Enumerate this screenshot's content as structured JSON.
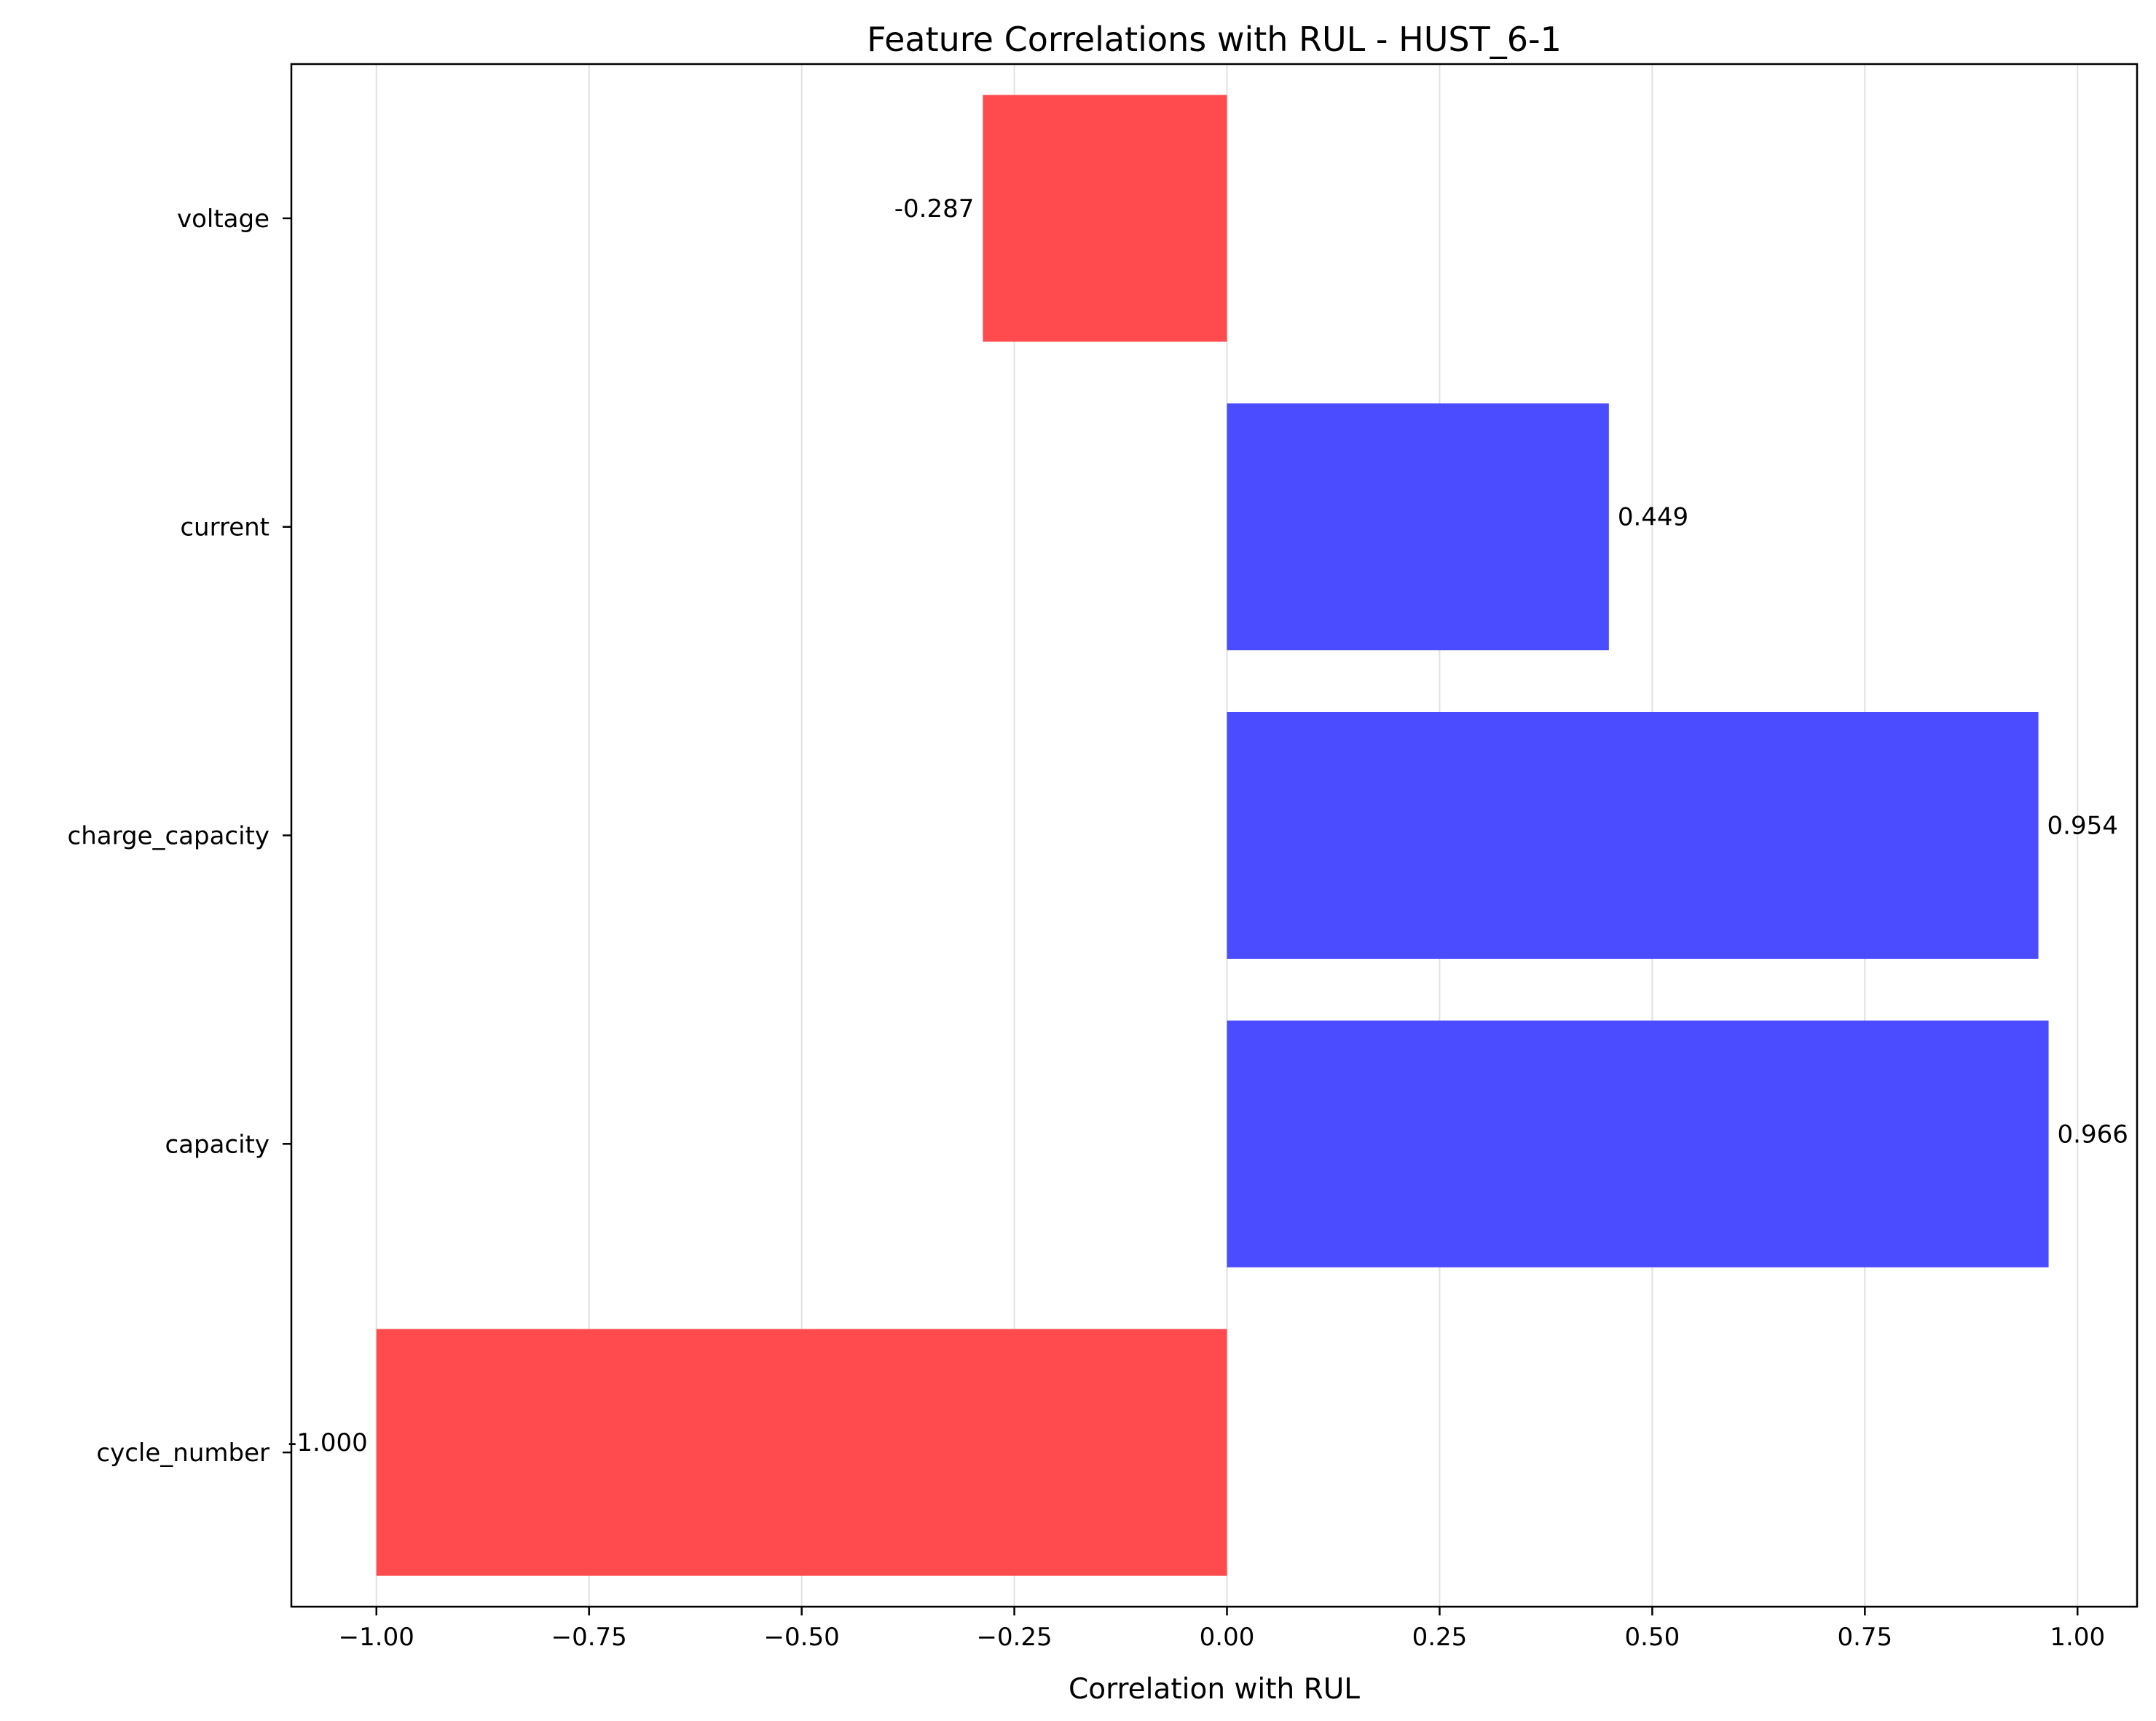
{
  "chart_data": {
    "type": "bar",
    "orientation": "horizontal",
    "title": "Feature Correlations with RUL - HUST_6-1",
    "xlabel": "Correlation with RUL",
    "ylabel": "",
    "categories": [
      "cycle_number",
      "capacity",
      "charge_capacity",
      "current",
      "voltage"
    ],
    "values": [
      -1.0,
      0.966,
      0.954,
      0.449,
      -0.287
    ],
    "data_labels": [
      "-1.000",
      "0.966",
      "0.954",
      "0.449",
      "-0.287"
    ],
    "xlim": [
      -1.1,
      1.07
    ],
    "xticks": [
      -1.0,
      -0.75,
      -0.5,
      -0.25,
      0.0,
      0.25,
      0.5,
      0.75,
      1.0
    ],
    "xtick_labels": [
      "−1.00",
      "−0.75",
      "−0.50",
      "−0.25",
      "0.00",
      "0.25",
      "0.50",
      "0.75",
      "1.00"
    ],
    "grid": "vertical",
    "legend": "none",
    "colors": {
      "positive": "#4b4bff",
      "negative": "#ff4b4e",
      "grid": "#e1e1e1",
      "axis": "#000000"
    }
  }
}
